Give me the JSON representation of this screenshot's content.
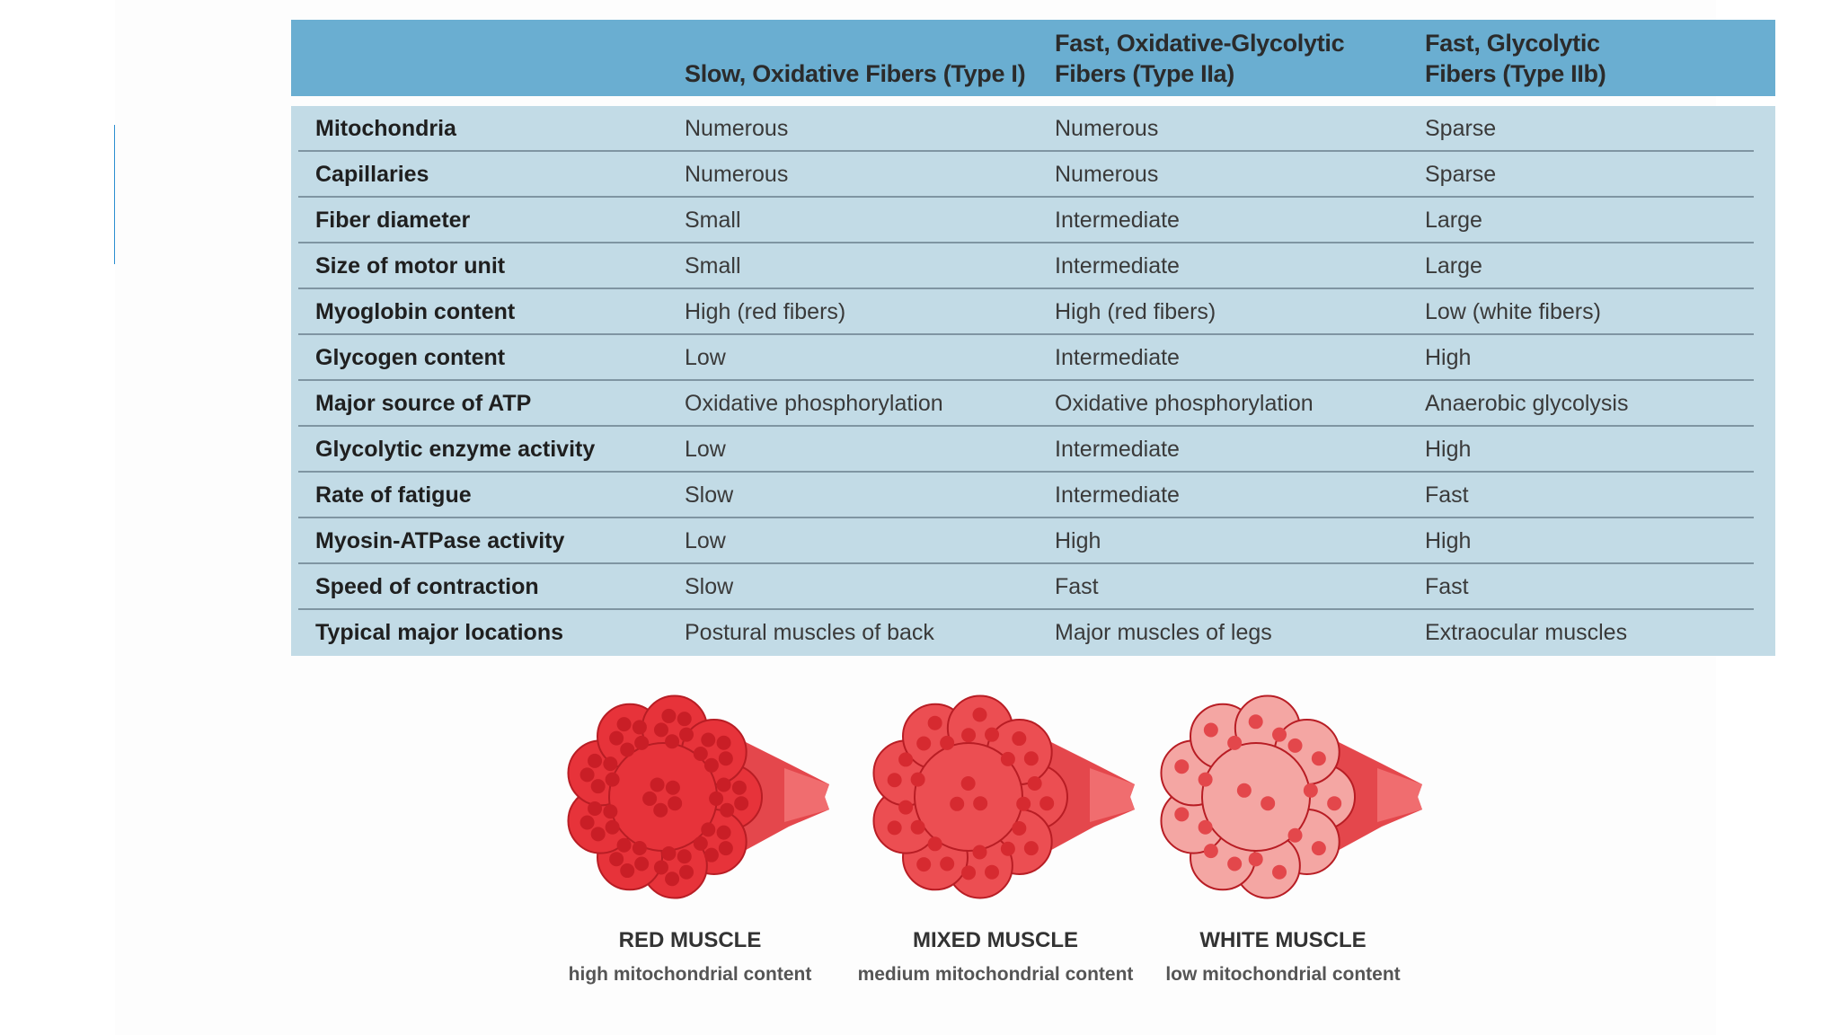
{
  "table": {
    "headers": [
      "",
      "Slow, Oxidative Fibers (Type I)",
      "Fast, Oxidative-Glycolytic Fibers (Type IIa)",
      "Fast, Glycolytic Fibers (Type IIb)"
    ],
    "rows": [
      [
        "Mitochondria",
        "Numerous",
        "Numerous",
        "Sparse"
      ],
      [
        "Capillaries",
        "Numerous",
        "Numerous",
        "Sparse"
      ],
      [
        "Fiber diameter",
        "Small",
        "Intermediate",
        "Large"
      ],
      [
        "Size of motor unit",
        "Small",
        "Intermediate",
        "Large"
      ],
      [
        "Myoglobin content",
        "High (red fibers)",
        "High (red fibers)",
        "Low (white fibers)"
      ],
      [
        "Glycogen content",
        "Low",
        "Intermediate",
        "High"
      ],
      [
        "Major source of ATP",
        "Oxidative phosphorylation",
        "Oxidative phosphorylation",
        "Anaerobic glycolysis"
      ],
      [
        "Glycolytic enzyme activity",
        "Low",
        "Intermediate",
        "High"
      ],
      [
        "Rate of fatigue",
        "Slow",
        "Intermediate",
        "Fast"
      ],
      [
        "Myosin-ATPase activity",
        "Low",
        "High",
        "High"
      ],
      [
        "Speed of contraction",
        "Slow",
        "Fast",
        "Fast"
      ],
      [
        "Typical major locations",
        "Postural muscles of back",
        "Major muscles of legs",
        "Extraocular muscles"
      ]
    ]
  },
  "muscles": [
    {
      "title": "RED MUSCLE",
      "caption": "high mitochondrial content",
      "fill": "#e7333a",
      "dot": "#c91e26",
      "dot_count": 5
    },
    {
      "title": "MIXED MUSCLE",
      "caption": "medium mitochondrial content",
      "fill": "#ec4e52",
      "dot": "#d62a30",
      "dot_count": 3
    },
    {
      "title": "WHITE MUSCLE",
      "caption": "low mitochondrial content",
      "fill": "#f4a6a3",
      "dot": "#e3474b",
      "dot_count": 2
    }
  ],
  "colors": {
    "header": "#6aaed1",
    "body": "#c2dbe6",
    "accent": "#2b8fd0"
  }
}
